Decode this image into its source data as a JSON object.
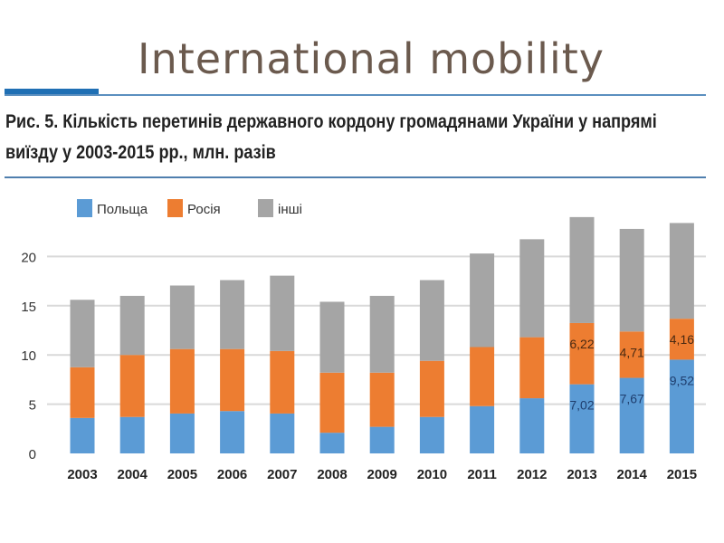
{
  "slide": {
    "title": "International mobility"
  },
  "chart_data": {
    "type": "bar",
    "stacked": true,
    "title": "Рис. 5. Кількість перетинів державного кордону громадянами України у напрямі виїзду у 2003-2015 рр., млн. разів",
    "categories": [
      "2003",
      "2004",
      "2005",
      "2006",
      "2007",
      "2008",
      "2009",
      "2010",
      "2011",
      "2012",
      "2013",
      "2014",
      "2015"
    ],
    "series": [
      {
        "name": "Польща",
        "color": "#5b9bd5",
        "values": [
          3.6,
          3.7,
          4.05,
          4.3,
          4.05,
          2.1,
          2.7,
          3.7,
          4.8,
          5.6,
          7.02,
          7.67,
          9.52
        ]
      },
      {
        "name": "Росія",
        "color": "#ed7d31",
        "values": [
          5.15,
          6.3,
          6.55,
          6.3,
          6.35,
          6.1,
          5.5,
          5.7,
          6.0,
          6.2,
          6.22,
          4.71,
          4.16
        ]
      },
      {
        "name": "інші",
        "color": "#a5a5a5",
        "values": [
          6.85,
          6.0,
          6.45,
          7.0,
          7.65,
          7.2,
          7.8,
          8.2,
          9.5,
          9.95,
          10.76,
          10.42,
          9.72
        ]
      }
    ],
    "data_labels": [
      {
        "category": "2013",
        "series": "Польща",
        "text": "7,02"
      },
      {
        "category": "2013",
        "series": "Росія",
        "text": "6,22"
      },
      {
        "category": "2014",
        "series": "Польща",
        "text": "7,67"
      },
      {
        "category": "2014",
        "series": "Росія",
        "text": "4,71"
      },
      {
        "category": "2015",
        "series": "Польща",
        "text": "9,52"
      },
      {
        "category": "2015",
        "series": "Росія",
        "text": "4,16"
      }
    ],
    "yticks": [
      "0",
      "5",
      "10",
      "15",
      "20"
    ],
    "ylim": [
      0,
      24
    ],
    "grid": true,
    "legend": "top-left"
  }
}
